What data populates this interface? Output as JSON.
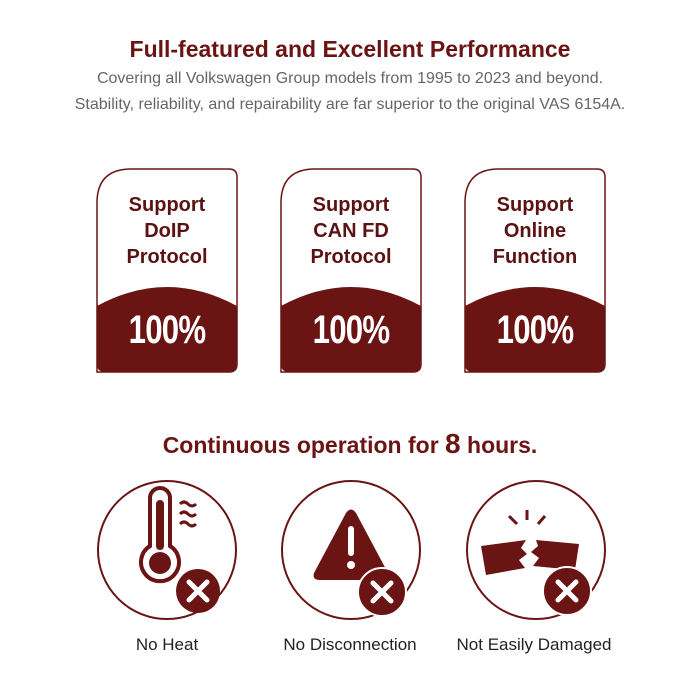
{
  "header": {
    "title": "Full-featured and Excellent Performance",
    "subtitle_line1": "Covering all Volkswagen Group models from 1995 to 2023 and beyond.",
    "subtitle_line2": "Stability, reliability, and repairability are far superior to the original VAS 6154A."
  },
  "cards": [
    {
      "lines": [
        "Support",
        "DoIP",
        "Protocol"
      ],
      "percent": "100%",
      "level": 100
    },
    {
      "lines": [
        "Support",
        "CAN FD",
        "Protocol"
      ],
      "percent": "100%",
      "level": 100
    },
    {
      "lines": [
        "Support",
        "Online",
        "Function"
      ],
      "percent": "100%",
      "level": 100
    }
  ],
  "continuous": {
    "prefix": "Continuous operation for ",
    "hours": "8",
    "suffix": " hours."
  },
  "features": [
    {
      "icon": "thermometer-heat-icon",
      "label": "No Heat"
    },
    {
      "icon": "warning-triangle-icon",
      "label": "No Disconnection"
    },
    {
      "icon": "broken-piece-icon",
      "label": "Not Easily Damaged"
    }
  ],
  "colors": {
    "accent": "#6b1414",
    "subtitle": "#666666"
  }
}
